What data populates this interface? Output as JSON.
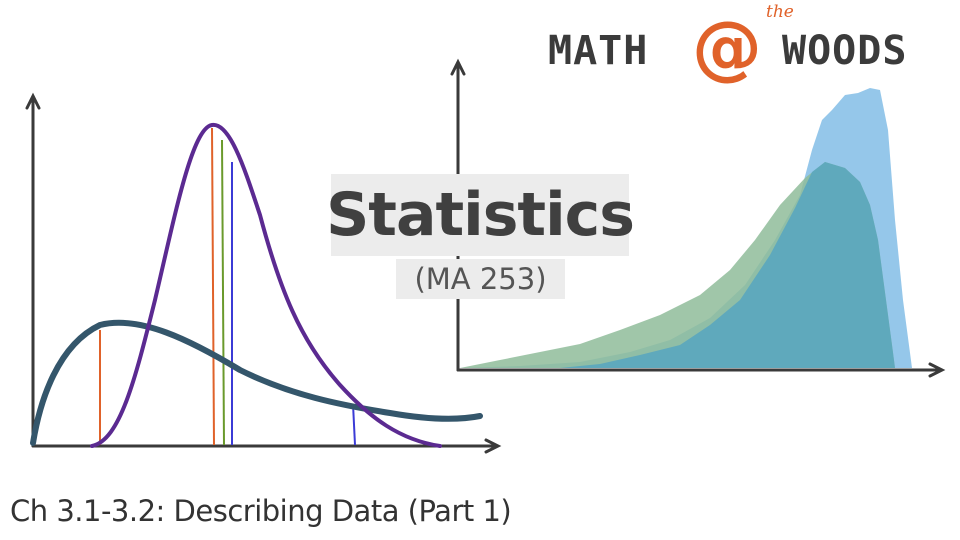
{
  "logo": {
    "left_text": "MATH",
    "at_symbol": "@",
    "superscript": "the",
    "right_text": "WOODS",
    "colors": {
      "text": "#3b3b3b",
      "accent": "#e0622a"
    }
  },
  "slide": {
    "title": "Statistics",
    "course_code": "(MA 253)",
    "subtitle": "Ch 3.1-3.2: Describing Data (Part 1)"
  },
  "illustration": {
    "left_plot": {
      "curves": [
        {
          "name": "right-skewed wide curve",
          "color": "#34566b"
        },
        {
          "name": "narrow peaked curve",
          "color": "#5b2a91"
        }
      ],
      "markers": [
        {
          "color": "#e0622a"
        },
        {
          "color": "#e0622a"
        },
        {
          "color": "#6a9a2c"
        },
        {
          "color": "#3b3bd6"
        },
        {
          "color": "#3b3bd6"
        }
      ]
    },
    "right_plot": {
      "distributions": [
        {
          "name": "light blue distribution",
          "color": "#82bde6"
        },
        {
          "name": "green distribution",
          "color": "#8fbc9a"
        },
        {
          "name": "overlap",
          "color": "#5aa6bf"
        }
      ]
    },
    "axis_color": "#3a3a3a"
  }
}
